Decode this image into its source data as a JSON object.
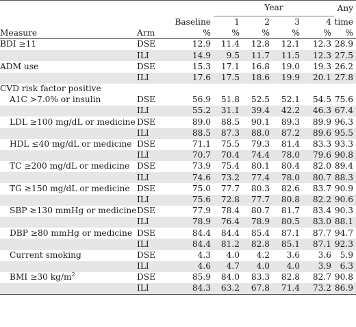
{
  "header": {
    "year_group": "Year",
    "measure": "Measure",
    "arm": "Arm",
    "baseline": [
      "Baseline",
      "%"
    ],
    "y1": [
      "1",
      "%"
    ],
    "y2": [
      "2",
      "%"
    ],
    "y3": [
      "3",
      "%"
    ],
    "y4": [
      "4",
      "%"
    ],
    "any": [
      "Any",
      "time",
      "%"
    ]
  },
  "rows": [
    {
      "measure": "BDI ≥11",
      "indent": false,
      "arm": "DSE",
      "values": [
        "12.9",
        "11.4",
        "12.8",
        "12.1",
        "12.3",
        "28.9"
      ]
    },
    {
      "measure": "",
      "indent": false,
      "arm": "ILI",
      "values": [
        "14.9",
        "9.5",
        "11.7",
        "11.5",
        "12.3",
        "27.5"
      ]
    },
    {
      "measure": "ADM use",
      "indent": false,
      "arm": "DSE",
      "values": [
        "15.3",
        "17.1",
        "16.8",
        "19.0",
        "19.3",
        "26.2"
      ]
    },
    {
      "measure": "",
      "indent": false,
      "arm": "ILI",
      "values": [
        "17.6",
        "17.5",
        "18.6",
        "19.9",
        "20.1",
        "27.8"
      ]
    },
    {
      "measure": "CVD risk factor positive",
      "indent": false,
      "arm": "",
      "values": [
        "",
        "",
        "",
        "",
        "",
        ""
      ]
    },
    {
      "measure": "A1C >7.0% or insulin",
      "indent": true,
      "arm": "DSE",
      "values": [
        "56.9",
        "51.8",
        "52.5",
        "52.1",
        "54.5",
        "75.6"
      ]
    },
    {
      "measure": "",
      "indent": true,
      "arm": "ILI",
      "values": [
        "55.2",
        "31.1",
        "39.4",
        "42.2",
        "46.3",
        "67.4"
      ]
    },
    {
      "measure": "LDL ≥100 mg/dL or medicine",
      "indent": true,
      "arm": "DSE",
      "values": [
        "89.0",
        "88.5",
        "90.1",
        "89.3",
        "89.9",
        "96.3"
      ]
    },
    {
      "measure": "",
      "indent": true,
      "arm": "ILI",
      "values": [
        "88.5",
        "87.3",
        "88.0",
        "87.2",
        "89.6",
        "95.5"
      ]
    },
    {
      "measure": "HDL ≤40 mg/dL or medicine",
      "indent": true,
      "arm": "DSE",
      "values": [
        "71.1",
        "75.5",
        "79.3",
        "81.4",
        "83.3",
        "93.3"
      ]
    },
    {
      "measure": "",
      "indent": true,
      "arm": "ILI",
      "values": [
        "70.7",
        "70.4",
        "74.4",
        "78.0",
        "79.6",
        "90.8"
      ]
    },
    {
      "measure": "TC ≥200 mg/dL or medicine",
      "indent": true,
      "arm": "DSE",
      "values": [
        "73.9",
        "75.4",
        "80.1",
        "80.4",
        "82.0",
        "89.4"
      ]
    },
    {
      "measure": "",
      "indent": true,
      "arm": "ILI",
      "values": [
        "74.6",
        "73.2",
        "77.4",
        "78.0",
        "80.7",
        "88.3"
      ]
    },
    {
      "measure": "TG ≥150 mg/dL or medicine",
      "indent": true,
      "arm": "DSE",
      "values": [
        "75.0",
        "77.7",
        "80.3",
        "82.6",
        "83.7",
        "90.9"
      ]
    },
    {
      "measure": "",
      "indent": true,
      "arm": "ILI",
      "values": [
        "75.6",
        "72.8",
        "77.7",
        "80.8",
        "82.2",
        "90.6"
      ]
    },
    {
      "measure": "SBP ≥130 mmHg or medicine",
      "indent": true,
      "arm": "DSE",
      "values": [
        "77.9",
        "78.4",
        "80.7",
        "81.7",
        "83.4",
        "90.3"
      ]
    },
    {
      "measure": "",
      "indent": true,
      "arm": "ILI",
      "values": [
        "78.9",
        "76.4",
        "78.9",
        "80.5",
        "83.0",
        "88.1"
      ]
    },
    {
      "measure": "DBP ≥80 mmHg or medicine",
      "indent": true,
      "arm": "DSE",
      "values": [
        "84.4",
        "84.4",
        "85.4",
        "87.1",
        "87.7",
        "94.7"
      ]
    },
    {
      "measure": "",
      "indent": true,
      "arm": "ILI",
      "values": [
        "84.4",
        "81.2",
        "82.8",
        "85.1",
        "87.1",
        "92.3"
      ]
    },
    {
      "measure": "Current smoking",
      "indent": true,
      "arm": "DSE",
      "values": [
        "4.3",
        "4.0",
        "4.2",
        "3.6",
        "3.6",
        "5.9"
      ]
    },
    {
      "measure": "",
      "indent": true,
      "arm": "ILI",
      "values": [
        "4.6",
        "4.7",
        "4.0",
        "4.0",
        "3.9",
        "6.3"
      ]
    },
    {
      "measure": "BMI ≥30 kg/m",
      "sup": "2",
      "indent": true,
      "arm": "DSE",
      "values": [
        "85.9",
        "84.0",
        "83.3",
        "82.8",
        "82.7",
        "90.8"
      ]
    },
    {
      "measure": "",
      "indent": true,
      "arm": "ILI",
      "values": [
        "84.3",
        "63.2",
        "67.8",
        "71.4",
        "73.2",
        "86.9"
      ]
    }
  ],
  "shaded_rows": [
    1,
    3,
    6,
    8,
    10,
    12,
    14,
    16,
    18,
    20,
    22
  ]
}
